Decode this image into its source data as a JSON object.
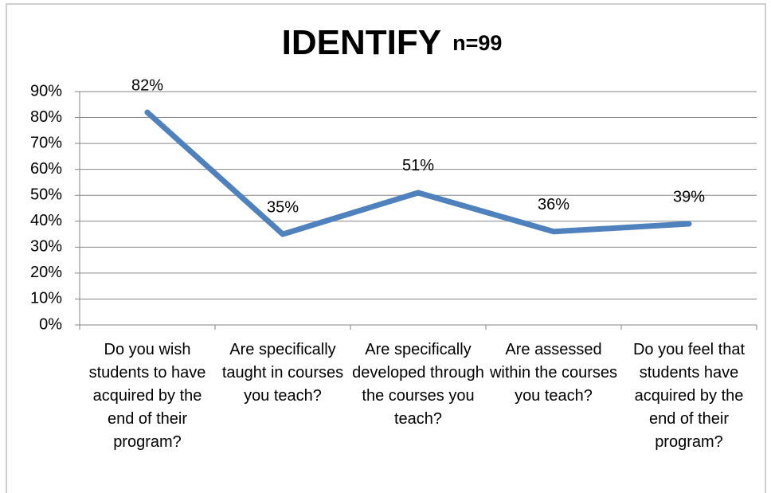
{
  "chart_data": {
    "type": "line",
    "title": "IDENTIFY",
    "subtitle": "n=99",
    "categories": [
      "Do you wish students to have acquired by the end of their program?",
      "Are specifically taught in courses you teach?",
      "Are specifically developed through the courses you teach?",
      "Are assessed within the courses you teach?",
      "Do you feel that students have acquired by the end of their program?"
    ],
    "series": [
      {
        "name": "IDENTIFY",
        "color": "#4f81bd",
        "values": [
          82,
          35,
          51,
          36,
          39
        ],
        "value_labels": [
          "82%",
          "35%",
          "51%",
          "36%",
          "39%"
        ]
      }
    ],
    "ylim": [
      0,
      90
    ],
    "yticks": [
      {
        "value": 0,
        "label": "0%"
      },
      {
        "value": 10,
        "label": "10%"
      },
      {
        "value": 20,
        "label": "20%"
      },
      {
        "value": 30,
        "label": "30%"
      },
      {
        "value": 40,
        "label": "40%"
      },
      {
        "value": 50,
        "label": "50%"
      },
      {
        "value": 60,
        "label": "60%"
      },
      {
        "value": 70,
        "label": "70%"
      },
      {
        "value": 80,
        "label": "80%"
      },
      {
        "value": 90,
        "label": "90%"
      }
    ],
    "grid": true
  }
}
